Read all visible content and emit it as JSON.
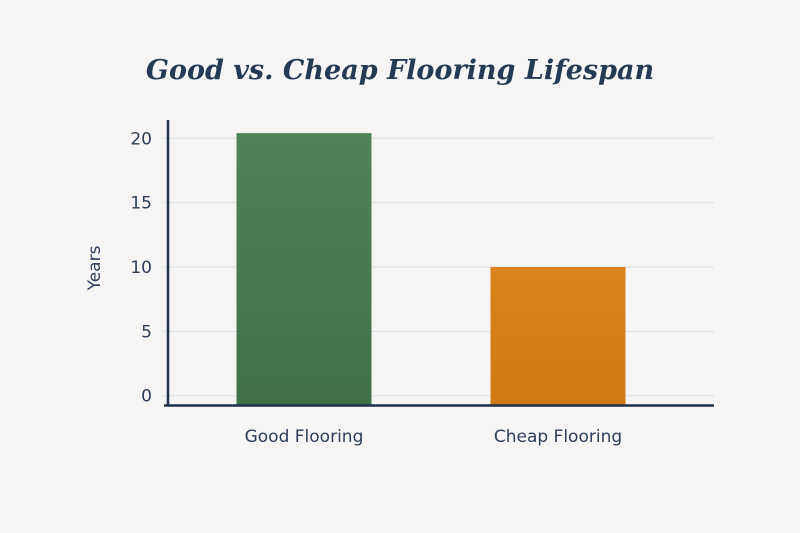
{
  "chart_data": {
    "type": "bar",
    "title": "Good vs. Cheap Flooring Lifespan",
    "xlabel": "",
    "ylabel": "Years",
    "categories": [
      "Good Flooring",
      "Cheap Flooring"
    ],
    "values": [
      20.4,
      10
    ],
    "colors": [
      "#4a7a52",
      "#d87f1a"
    ],
    "ylim": [
      0,
      20
    ],
    "yticks": [
      0,
      5,
      10,
      15,
      20
    ],
    "grid": true,
    "legend": "none"
  }
}
